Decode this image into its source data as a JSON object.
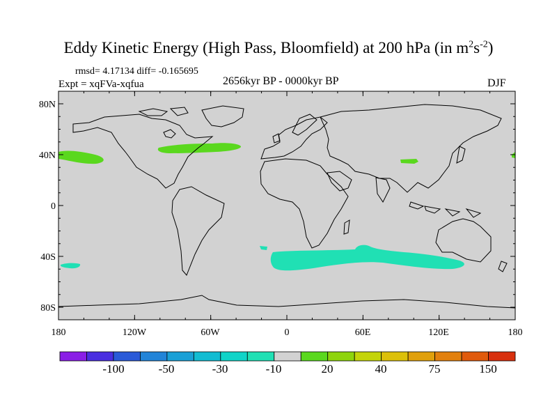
{
  "title": {
    "main": "Eddy Kinetic Energy (High Pass, Bloomfield) at 200 hPa (in m",
    "sup1": "2",
    "s": "s",
    "sup2": "-2",
    "close": ")"
  },
  "stats": "rmsd= 4.17134 diff= -0.165695",
  "expt": "Expt = xqFVa-xqfua",
  "period": "2656kyr BP - 0000kyr BP",
  "season": "DJF",
  "y_axis_labels": [
    "80N",
    "40N",
    "0",
    "40S",
    "80S"
  ],
  "x_axis_labels": [
    "180",
    "120W",
    "60W",
    "0",
    "60E",
    "120E",
    "180"
  ],
  "colorbar": {
    "colors": [
      "#8a1ee6",
      "#4a2ee0",
      "#2a5ad8",
      "#2284d8",
      "#1aa0d6",
      "#12bcd2",
      "#10d4c8",
      "#20e0b4",
      "#d2d2d2",
      "#5ad81e",
      "#8ed40c",
      "#c4d40a",
      "#dcc00a",
      "#e0a00c",
      "#e2800e",
      "#e05a0c",
      "#d8300e"
    ],
    "labels": [
      "-100",
      "-50",
      "-30",
      "-10",
      "20",
      "40",
      "75",
      "150"
    ]
  },
  "colors": {
    "land_background": "#d2d2d2",
    "positive_anomaly": "#5ad81e",
    "negative_anomaly": "#20e0b4",
    "coastline": "#000000"
  }
}
